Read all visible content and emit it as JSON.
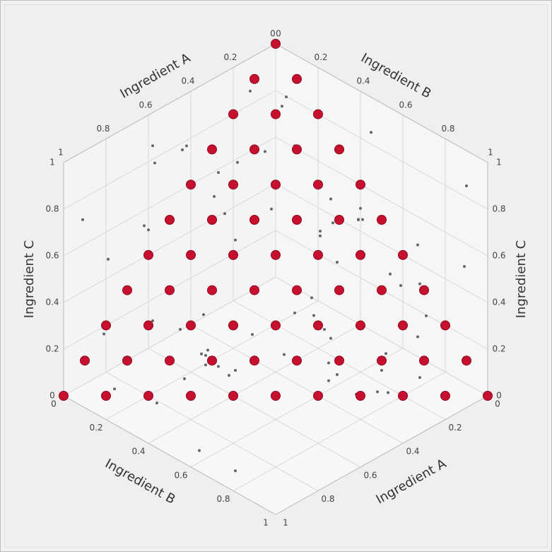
{
  "chart_data": {
    "type": "scatter3d",
    "axis_labels": {
      "x": "Ingredient A",
      "y": "Ingredient B",
      "z": "Ingredient C"
    },
    "xlim": [
      0,
      1
    ],
    "ylim": [
      0,
      1
    ],
    "zlim": [
      0,
      1
    ],
    "xticks": [
      0,
      0.2,
      0.4,
      0.6,
      0.8,
      1
    ],
    "yticks": [
      0,
      0.2,
      0.4,
      0.6,
      0.8,
      1
    ],
    "zticks": [
      0,
      0.2,
      0.4,
      0.6,
      0.8,
      1
    ],
    "grid": true,
    "series": [
      {
        "color": "#666666",
        "size": "small",
        "x": [
          0.12,
          0.85,
          0.43,
          0.67,
          0.05,
          0.91,
          0.33,
          0.58,
          0.21,
          0.76,
          0.49,
          0.14,
          0.97,
          0.62,
          0.28,
          0.83,
          0.09,
          0.54,
          0.71,
          0.37,
          0.18,
          0.93,
          0.46,
          0.65,
          0.02,
          0.79,
          0.31,
          0.57,
          0.88,
          0.24,
          0.69,
          0.41,
          0.15,
          0.96,
          0.52,
          0.27,
          0.74,
          0.08,
          0.61,
          0.39,
          0.86,
          0.19,
          0.47,
          0.73,
          0.34,
          0.95,
          0.11,
          0.56,
          0.82,
          0.26,
          0.63,
          0.44,
          0.07,
          0.89,
          0.36,
          0.59,
          0.22,
          0.78,
          0.51,
          0.13,
          0.68,
          0.94,
          0.29,
          0.45,
          0.81,
          0.04,
          0.72,
          0.38,
          0.55,
          0.17
        ],
        "y": [
          0.66,
          0.23,
          0.91,
          0.38,
          0.72,
          0.15,
          0.54,
          0.87,
          0.09,
          0.43,
          0.78,
          0.31,
          0.62,
          0.05,
          0.95,
          0.27,
          0.49,
          0.81,
          0.13,
          0.58,
          0.36,
          0.74,
          0.02,
          0.69,
          0.47,
          0.19,
          0.84,
          0.33,
          0.56,
          0.92,
          0.11,
          0.64,
          0.41,
          0.77,
          0.25,
          0.98,
          0.52,
          0.17,
          0.86,
          0.34,
          0.07,
          0.71,
          0.45,
          0.28,
          0.93,
          0.59,
          0.14,
          0.82,
          0.39,
          0.67,
          0.21,
          0.53,
          0.96,
          0.08,
          0.75,
          0.32,
          0.61,
          0.44,
          0.89,
          0.18,
          0.57,
          0.03,
          0.79,
          0.26,
          0.48,
          0.94,
          0.12,
          0.63,
          0.37,
          0.85
        ],
        "z": [
          0.41,
          0.77,
          0.19,
          0.88,
          0.53,
          0.06,
          0.64,
          0.32,
          0.95,
          0.27,
          0.71,
          0.14,
          0.48,
          0.83,
          0.37,
          0.02,
          0.59,
          0.92,
          0.24,
          0.66,
          0.11,
          0.45,
          0.79,
          0.35,
          0.87,
          0.58,
          0.09,
          0.73,
          0.42,
          0.16,
          0.97,
          0.31,
          0.62,
          0.05,
          0.84,
          0.47,
          0.22,
          0.69,
          0.38,
          0.91,
          0.55,
          0.13,
          0.76,
          0.29,
          0.61,
          0.04,
          0.86,
          0.44,
          0.18,
          0.72,
          0.99,
          0.34,
          0.57,
          0.25,
          0.81,
          0.08,
          0.67,
          0.46,
          0.21,
          0.93,
          0.39,
          0.74,
          0.15,
          0.52,
          0.28,
          0.89,
          0.63,
          0.07,
          0.96,
          0.49
        ]
      },
      {
        "color": "#c8102e",
        "size": "large",
        "x": [
          0,
          0,
          0,
          0,
          0,
          0,
          0,
          0,
          0,
          0,
          0,
          0.1,
          0.1,
          0.1,
          0.1,
          0.1,
          0.1,
          0.1,
          0.1,
          0.1,
          0.1,
          0.2,
          0.2,
          0.2,
          0.2,
          0.2,
          0.2,
          0.2,
          0.2,
          0.2,
          0.3,
          0.3,
          0.3,
          0.3,
          0.3,
          0.3,
          0.3,
          0.3,
          0.4,
          0.4,
          0.4,
          0.4,
          0.4,
          0.4,
          0.4,
          0.5,
          0.5,
          0.5,
          0.5,
          0.5,
          0.5,
          0.6,
          0.6,
          0.6,
          0.6,
          0.6,
          0.7,
          0.7,
          0.7,
          0.7,
          0.8,
          0.8,
          0.8,
          0.9,
          0.9,
          1
        ],
        "y": [
          0,
          0.1,
          0.2,
          0.3,
          0.4,
          0.5,
          0.6,
          0.7,
          0.8,
          0.9,
          1,
          0,
          0.1,
          0.2,
          0.3,
          0.4,
          0.5,
          0.6,
          0.7,
          0.8,
          0.9,
          0,
          0.1,
          0.2,
          0.3,
          0.4,
          0.5,
          0.6,
          0.7,
          0.8,
          0,
          0.1,
          0.2,
          0.3,
          0.4,
          0.5,
          0.6,
          0.7,
          0,
          0.1,
          0.2,
          0.3,
          0.4,
          0.5,
          0.6,
          0,
          0.1,
          0.2,
          0.3,
          0.4,
          0.5,
          0,
          0.1,
          0.2,
          0.3,
          0.4,
          0,
          0.1,
          0.2,
          0.3,
          0,
          0.1,
          0.2,
          0,
          0.1,
          0
        ],
        "z": [
          1,
          0.9,
          0.8,
          0.7,
          0.6,
          0.5,
          0.4,
          0.3,
          0.2,
          0.1,
          0,
          0.9,
          0.8,
          0.7,
          0.6,
          0.5,
          0.4,
          0.3,
          0.2,
          0.1,
          0,
          0.8,
          0.7,
          0.6,
          0.5,
          0.4,
          0.3,
          0.2,
          0.1,
          0,
          0.7,
          0.6,
          0.5,
          0.4,
          0.3,
          0.2,
          0.1,
          0,
          0.6,
          0.5,
          0.4,
          0.3,
          0.2,
          0.1,
          0,
          0.5,
          0.4,
          0.3,
          0.2,
          0.1,
          0,
          0.4,
          0.3,
          0.2,
          0.1,
          0,
          0.3,
          0.2,
          0.1,
          0,
          0.2,
          0.1,
          0,
          0.1,
          0,
          0
        ]
      }
    ]
  }
}
